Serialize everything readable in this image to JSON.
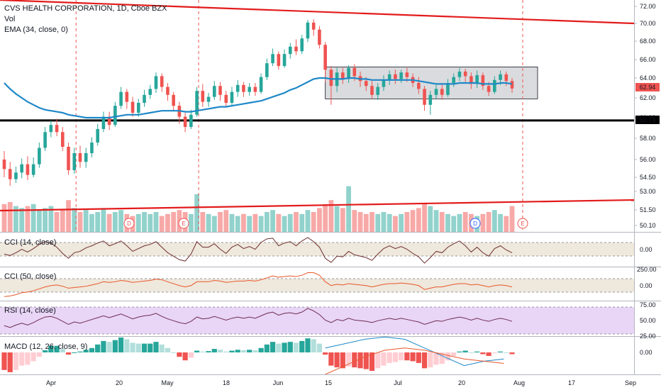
{
  "header": {
    "symbol_line": "CVS HEALTH CORPORATION, 1D, Cboe BZX",
    "vol_label": "Vol",
    "ema_label": "EMA (34, close, 0)"
  },
  "price_axis": {
    "ticks": [
      "72.00",
      "70.00",
      "68.00",
      "66.00",
      "64.00",
      "62.00",
      "60.00",
      "58.00",
      "56.00",
      "54.50",
      "53.00",
      "51.50",
      "50.10"
    ],
    "last_price": "62.94",
    "support_level": "59.73"
  },
  "time_axis": {
    "labels": [
      "Apr",
      "20",
      "May",
      "18",
      "Jun",
      "15",
      "Jul",
      "20",
      "Aug",
      "17",
      "Sep"
    ]
  },
  "markers": [
    {
      "text": "D"
    },
    {
      "text": "E"
    },
    {
      "text": "D"
    },
    {
      "text": "E"
    }
  ],
  "panes": {
    "cci14": {
      "label": "CCI (14, close)",
      "ticks": [
        "0.00"
      ]
    },
    "cci50": {
      "label": "CCI (50, close)",
      "ticks": [
        "250.00",
        "0.00"
      ]
    },
    "rsi": {
      "label": "RSI (14, close)",
      "ticks": [
        "75.00",
        "50.00",
        "25.00"
      ]
    },
    "macd": {
      "label": "MACD (12, 26, close, 9)",
      "ticks": [
        "0.00"
      ]
    }
  },
  "colors": {
    "up": "#26a69a",
    "down": "#ef5350",
    "ema": "#1e88c7",
    "trendline": "#e31b1b",
    "support": "#000000",
    "range_box": "#9598a1",
    "cci_line": "#6d2e2e",
    "cci50_line": "#e8572a",
    "rsi_line": "#6e2c56",
    "rsi_band": "#e9d5f5",
    "cci_band": "#efe8dc"
  },
  "chart_data": {
    "type": "candlestick",
    "title": "CVS HEALTH CORPORATION, 1D, Cboe BZX",
    "ylim": [
      49.5,
      73
    ],
    "candles": [
      [
        56,
        55.2,
        56.8,
        54.5
      ],
      [
        55.2,
        54.3,
        55.8,
        53.6
      ],
      [
        54.3,
        54.9,
        55.4,
        53.9
      ],
      [
        54.9,
        55.6,
        56.1,
        54.4
      ],
      [
        55.6,
        54.7,
        56.3,
        54.2
      ],
      [
        54.7,
        55.6,
        56.2,
        54.5
      ],
      [
        55.6,
        57.1,
        57.6,
        55.3
      ],
      [
        57.1,
        58.6,
        59.1,
        56.8
      ],
      [
        58.6,
        59.3,
        59.7,
        58.1
      ],
      [
        59.3,
        58.6,
        59.9,
        58.2
      ],
      [
        58.6,
        57.2,
        59.1,
        56.8
      ],
      [
        57.2,
        55.1,
        57.6,
        54.7
      ],
      [
        55.1,
        56.6,
        57.1,
        54.8
      ],
      [
        56.6,
        55.8,
        57.3,
        55.3
      ],
      [
        55.8,
        56.6,
        57.1,
        55.3
      ],
      [
        56.6,
        57.6,
        58.1,
        56.2
      ],
      [
        57.6,
        58.9,
        59.4,
        57.3
      ],
      [
        58.9,
        60.1,
        60.6,
        58.6
      ],
      [
        60.1,
        59.3,
        60.6,
        58.8
      ],
      [
        59.3,
        61.2,
        61.6,
        59.1
      ],
      [
        61.2,
        62.6,
        63.1,
        60.9
      ],
      [
        62.6,
        61.6,
        62.9,
        60.9
      ],
      [
        61.6,
        60.5,
        62.1,
        60.1
      ],
      [
        60.5,
        61.5,
        61.9,
        60.1
      ],
      [
        61.5,
        62.3,
        62.8,
        61.1
      ],
      [
        62.3,
        62.9,
        63.3,
        61.9
      ],
      [
        62.9,
        64.2,
        64.6,
        62.5
      ],
      [
        64.2,
        63.1,
        64.5,
        62.6
      ],
      [
        63.1,
        62.3,
        63.5,
        61.7
      ],
      [
        62.3,
        61.2,
        62.6,
        60.7
      ],
      [
        61.2,
        60.1,
        61.6,
        59.4
      ],
      [
        60.1,
        59.1,
        60.5,
        58.6
      ],
      [
        59.1,
        60.3,
        60.8,
        58.9
      ],
      [
        60.3,
        62.7,
        63.1,
        60.1
      ],
      [
        62.7,
        61.6,
        63.4,
        61.1
      ],
      [
        61.6,
        62.1,
        62.5,
        61.1
      ],
      [
        62.1,
        63.2,
        63.7,
        61.8
      ],
      [
        63.2,
        62.3,
        63.6,
        61.7
      ],
      [
        62.3,
        61.5,
        62.7,
        61.1
      ],
      [
        61.5,
        62.6,
        63.1,
        61.2
      ],
      [
        62.6,
        63.3,
        63.8,
        62.1
      ],
      [
        63.3,
        62.6,
        63.6,
        62.1
      ],
      [
        62.6,
        63.1,
        63.5,
        62.2
      ],
      [
        63.1,
        62.6,
        63.5,
        62.2
      ],
      [
        62.6,
        64.1,
        64.5,
        62.4
      ],
      [
        64.1,
        65.6,
        66.1,
        63.8
      ],
      [
        65.6,
        66.6,
        67.2,
        65.3
      ],
      [
        66.6,
        65.3,
        66.9,
        64.9
      ],
      [
        65.3,
        66.6,
        67.1,
        65.1
      ],
      [
        66.6,
        67.4,
        67.8,
        66.1
      ],
      [
        67.4,
        66.9,
        68.2,
        66.5
      ],
      [
        66.9,
        68.3,
        68.7,
        66.6
      ],
      [
        68.3,
        70.1,
        70.4,
        67.9
      ],
      [
        70.1,
        69.3,
        70.5,
        68.6
      ],
      [
        69.3,
        67.6,
        69.7,
        67.2
      ],
      [
        67.6,
        64.9,
        67.9,
        63.6
      ],
      [
        64.9,
        63.2,
        65.3,
        61.3
      ],
      [
        63.2,
        64.6,
        65.1,
        62.6
      ],
      [
        64.6,
        63.9,
        65.1,
        63.4
      ],
      [
        63.9,
        65.1,
        65.4,
        63.5
      ],
      [
        65.1,
        64.2,
        65.5,
        63.7
      ],
      [
        64.2,
        63.7,
        64.7,
        63.1
      ],
      [
        63.7,
        63.2,
        64.1,
        62.7
      ],
      [
        63.2,
        62.3,
        63.7,
        61.9
      ],
      [
        62.3,
        63.1,
        63.5,
        61.8
      ],
      [
        63.1,
        63.8,
        64.3,
        62.7
      ],
      [
        63.8,
        64.4,
        64.8,
        63.3
      ],
      [
        64.4,
        63.9,
        64.9,
        63.4
      ],
      [
        63.9,
        64.6,
        64.9,
        63.5
      ],
      [
        64.6,
        64.1,
        65.1,
        63.6
      ],
      [
        64.1,
        63.5,
        64.5,
        63.1
      ],
      [
        63.5,
        62.9,
        64.1,
        62.4
      ],
      [
        62.9,
        61.3,
        63.2,
        60.7
      ],
      [
        61.3,
        62.3,
        62.7,
        60.3
      ],
      [
        62.3,
        62.9,
        63.3,
        61.9
      ],
      [
        62.9,
        62.3,
        63.4,
        61.8
      ],
      [
        62.3,
        63.5,
        63.9,
        62.1
      ],
      [
        63.5,
        64.1,
        64.5,
        63.1
      ],
      [
        64.1,
        64.7,
        65.1,
        63.7
      ],
      [
        64.7,
        64.2,
        65.0,
        63.6
      ],
      [
        64.2,
        63.4,
        64.6,
        62.9
      ],
      [
        63.4,
        64.3,
        64.8,
        63.0
      ],
      [
        64.3,
        63.2,
        64.6,
        62.8
      ],
      [
        63.2,
        62.6,
        63.6,
        62.2
      ],
      [
        62.6,
        63.8,
        64.2,
        62.4
      ],
      [
        63.8,
        64.4,
        64.8,
        63.3
      ],
      [
        64.4,
        63.7,
        64.7,
        63.2
      ],
      [
        63.7,
        62.94,
        64.0,
        62.5
      ]
    ],
    "volume": [
      1.4,
      1.5,
      1.3,
      1.2,
      1.3,
      1.4,
      1.1,
      1.2,
      1.3,
      1.0,
      1.1,
      1.6,
      1.2,
      1.0,
      1.1,
      0.9,
      1.0,
      1.2,
      0.9,
      1.0,
      1.1,
      0.9,
      0.8,
      0.9,
      1.0,
      0.9,
      1.0,
      0.8,
      0.9,
      1.0,
      1.1,
      1.0,
      0.9,
      1.9,
      1.0,
      0.9,
      0.8,
      1.0,
      1.1,
      0.9,
      0.8,
      0.9,
      0.8,
      0.9,
      0.8,
      1.0,
      1.1,
      0.9,
      0.8,
      0.9,
      1.0,
      0.9,
      1.1,
      1.0,
      1.2,
      1.4,
      1.6,
      1.3,
      1.2,
      2.3,
      1.1,
      1.0,
      0.9,
      1.0,
      0.9,
      1.0,
      0.9,
      0.8,
      0.9,
      1.0,
      1.1,
      1.2,
      1.4,
      1.3,
      1.1,
      1.0,
      0.9,
      0.8,
      0.9,
      1.0,
      0.9,
      0.8,
      0.9,
      1.0,
      1.1,
      0.9,
      0.8,
      1.3
    ],
    "ema": [
      63.5,
      62.9,
      62.4,
      62.0,
      61.6,
      61.3,
      61.0,
      60.8,
      60.7,
      60.6,
      60.5,
      60.3,
      60.2,
      60.1,
      60.0,
      60.0,
      60.0,
      60.0,
      60.0,
      60.1,
      60.2,
      60.3,
      60.3,
      60.3,
      60.4,
      60.5,
      60.6,
      60.7,
      60.7,
      60.7,
      60.7,
      60.6,
      60.6,
      60.7,
      60.8,
      60.9,
      61.0,
      61.1,
      61.1,
      61.2,
      61.3,
      61.4,
      61.5,
      61.6,
      61.7,
      61.9,
      62.1,
      62.3,
      62.5,
      62.8,
      63.0,
      63.3,
      63.6,
      63.9,
      64.0,
      64.0,
      63.9,
      63.9,
      63.9,
      64.0,
      64.0,
      63.9,
      63.9,
      63.8,
      63.8,
      63.8,
      63.8,
      63.8,
      63.8,
      63.8,
      63.8,
      63.7,
      63.6,
      63.5,
      63.4,
      63.4,
      63.4,
      63.4,
      63.5,
      63.5,
      63.5,
      63.5,
      63.4,
      63.4,
      63.4,
      63.5,
      63.5,
      63.4
    ],
    "cci14": [
      -60,
      -80,
      -40,
      10,
      -30,
      20,
      80,
      120,
      100,
      40,
      -50,
      -120,
      -40,
      -20,
      30,
      60,
      100,
      130,
      60,
      90,
      130,
      60,
      -20,
      20,
      60,
      80,
      120,
      40,
      -40,
      -90,
      -140,
      -160,
      -60,
      120,
      40,
      40,
      90,
      10,
      -50,
      40,
      80,
      20,
      50,
      10,
      110,
      160,
      170,
      60,
      100,
      120,
      60,
      130,
      180,
      120,
      40,
      -120,
      -180,
      -90,
      -100,
      -20,
      -70,
      -90,
      -110,
      -150,
      -60,
      20,
      60,
      20,
      50,
      10,
      -50,
      -100,
      -190,
      -110,
      -20,
      -40,
      40,
      90,
      130,
      60,
      -30,
      40,
      -40,
      -90,
      20,
      60,
      0,
      -40
    ],
    "cci50": [
      -170,
      -160,
      -140,
      -110,
      -100,
      -80,
      -50,
      -20,
      0,
      10,
      -10,
      -40,
      -30,
      -20,
      -10,
      10,
      30,
      60,
      50,
      60,
      80,
      70,
      50,
      60,
      70,
      80,
      100,
      90,
      60,
      30,
      0,
      -20,
      0,
      60,
      60,
      60,
      80,
      70,
      50,
      60,
      70,
      70,
      80,
      70,
      90,
      120,
      150,
      130,
      140,
      150,
      140,
      160,
      200,
      200,
      160,
      60,
      0,
      20,
      10,
      30,
      20,
      10,
      0,
      -20,
      0,
      20,
      30,
      30,
      40,
      30,
      20,
      0,
      -60,
      -40,
      -20,
      -20,
      0,
      20,
      30,
      30,
      10,
      20,
      0,
      -20,
      0,
      10,
      0,
      -20
    ],
    "rsi": [
      42,
      39,
      43,
      46,
      43,
      47,
      52,
      56,
      57,
      54,
      49,
      44,
      48,
      46,
      49,
      52,
      55,
      58,
      55,
      58,
      61,
      57,
      53,
      56,
      58,
      59,
      62,
      57,
      53,
      50,
      47,
      45,
      49,
      56,
      53,
      54,
      57,
      54,
      51,
      54,
      56,
      54,
      56,
      54,
      58,
      62,
      64,
      59,
      62,
      63,
      61,
      64,
      70,
      66,
      60,
      51,
      47,
      52,
      50,
      54,
      51,
      50,
      49,
      47,
      50,
      52,
      54,
      52,
      54,
      52,
      50,
      48,
      44,
      47,
      50,
      49,
      52,
      54,
      56,
      54,
      51,
      54,
      51,
      49,
      52,
      54,
      52,
      49
    ],
    "macd_hist": [
      -0.4,
      -0.45,
      -0.4,
      -0.3,
      -0.28,
      -0.2,
      -0.1,
      0.05,
      0.15,
      0.15,
      0.08,
      -0.05,
      0.0,
      0.02,
      0.06,
      0.1,
      0.18,
      0.26,
      0.24,
      0.28,
      0.34,
      0.3,
      0.22,
      0.2,
      0.2,
      0.2,
      0.24,
      0.18,
      0.1,
      0.0,
      -0.1,
      -0.18,
      -0.12,
      0.04,
      0.02,
      0.03,
      0.08,
      0.06,
      0.02,
      0.04,
      0.06,
      0.05,
      0.06,
      0.05,
      0.1,
      0.18,
      0.24,
      0.2,
      0.22,
      0.24,
      0.22,
      0.26,
      0.32,
      0.3,
      0.2,
      -0.05,
      -0.3,
      -0.34,
      -0.36,
      -0.32,
      -0.34,
      -0.36,
      -0.38,
      -0.42,
      -0.36,
      -0.3,
      -0.24,
      -0.22,
      -0.18,
      -0.18,
      -0.2,
      -0.24,
      -0.36,
      -0.34,
      -0.28,
      -0.26,
      -0.18,
      -0.08,
      0.02,
      0.04,
      0.0,
      0.02,
      -0.04,
      -0.08,
      -0.02,
      0.02,
      0.0,
      -0.04
    ],
    "vlines_at_index": [
      12,
      33,
      87
    ]
  }
}
